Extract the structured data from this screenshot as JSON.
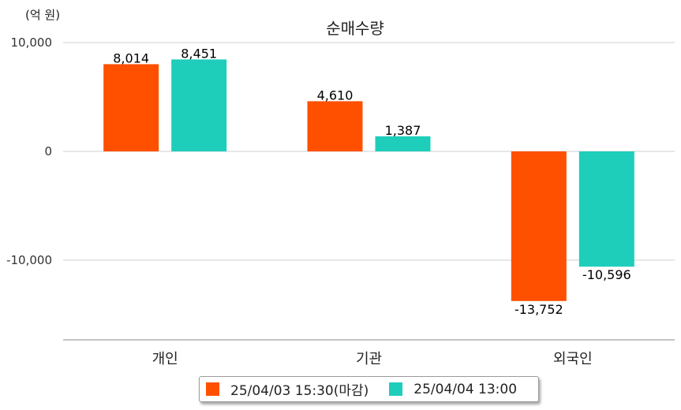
{
  "unit_label": "(억 원)",
  "chart_data": {
    "type": "bar",
    "title": "순매수량",
    "xlabel": "",
    "ylabel": "",
    "categories": [
      "개인",
      "기관",
      "외국인"
    ],
    "series": [
      {
        "name": "25/04/03 15:30(마감)",
        "color": "#ff5000",
        "values": [
          8014,
          4610,
          -13752
        ]
      },
      {
        "name": "25/04/04 13:00",
        "color": "#1ecebb",
        "values": [
          8451,
          1387,
          -10596
        ]
      }
    ],
    "y_ticks": [
      10000,
      0,
      -10000
    ],
    "tick_labels": [
      "10,000",
      "0",
      "-10,000"
    ],
    "data_labels": [
      [
        "8,014",
        "4,610",
        "-13,752"
      ],
      [
        "8,451",
        "1,387",
        "-10,596"
      ]
    ],
    "ylim": [
      -17200,
      10000
    ],
    "grid": true,
    "legend_position": "bottom"
  }
}
